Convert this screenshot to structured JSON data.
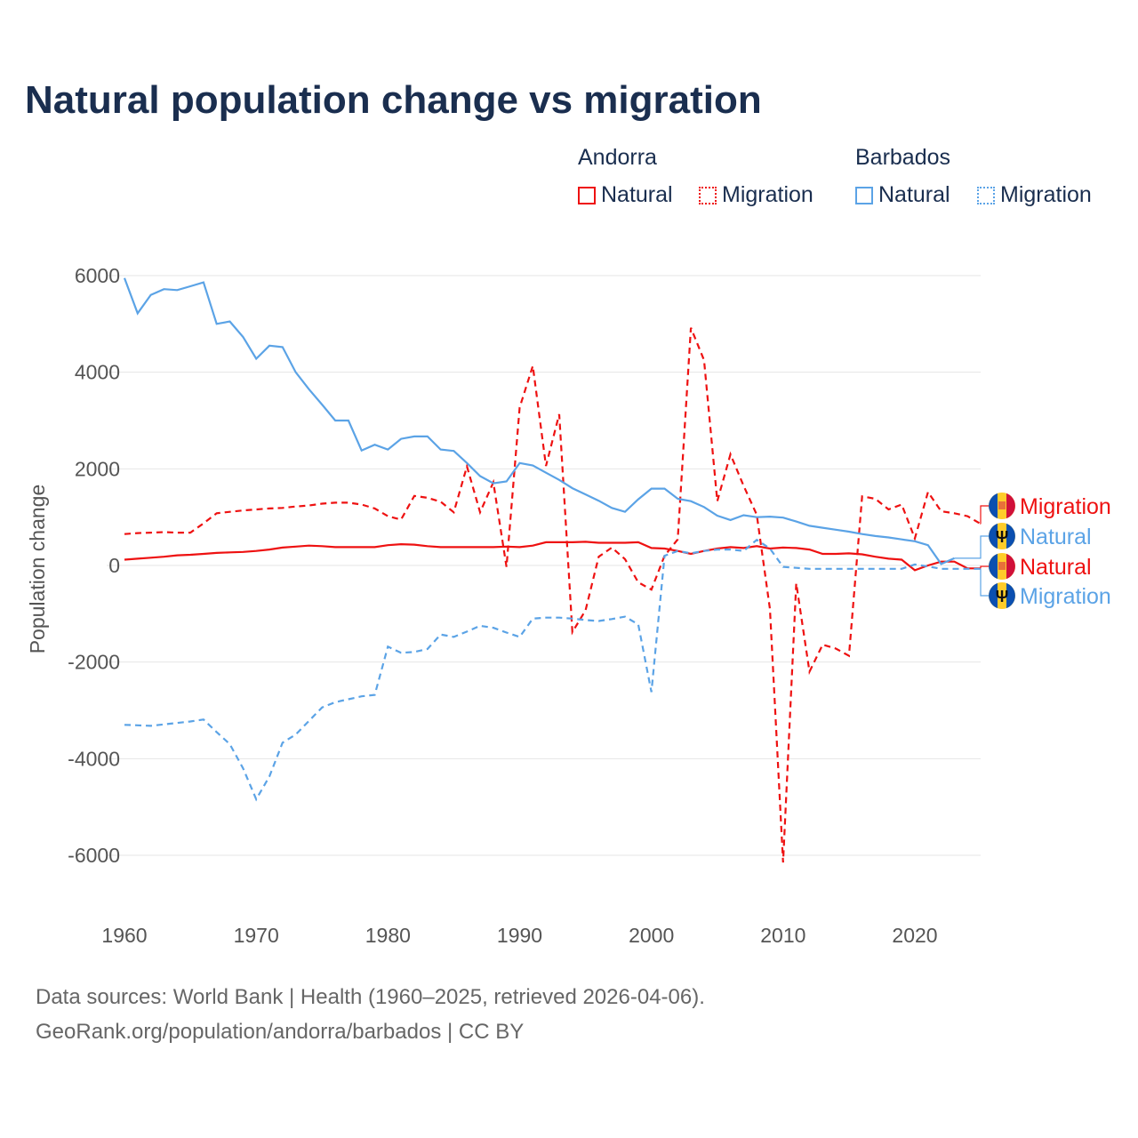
{
  "colors": {
    "andorra": "#ee1111",
    "barbados": "#5ba3e6",
    "title": "#1a2e4f"
  },
  "chart_data": {
    "type": "line",
    "title": "Natural population change vs migration",
    "ylabel": "Population change",
    "xlabel": "",
    "xlim": [
      1960,
      2025
    ],
    "ylim": [
      -6500,
      6300
    ],
    "xticks": [
      1960,
      1970,
      1980,
      1990,
      2000,
      2010,
      2020
    ],
    "yticks": [
      6000,
      4000,
      2000,
      0,
      -2000,
      -4000,
      -6000
    ],
    "grid": true,
    "legend": {
      "placement": "top-right",
      "groups": [
        {
          "name": "Andorra",
          "items": [
            "Natural",
            "Migration"
          ]
        },
        {
          "name": "Barbados",
          "items": [
            "Natural",
            "Migration"
          ]
        }
      ]
    },
    "series": [
      {
        "name": "Andorra Natural",
        "country": "Andorra",
        "kind": "Natural",
        "label": "Natural",
        "start": 1960,
        "values": [
          120,
          140,
          160,
          180,
          210,
          220,
          240,
          260,
          270,
          280,
          300,
          330,
          370,
          390,
          410,
          400,
          380,
          380,
          380,
          380,
          420,
          440,
          430,
          400,
          380,
          380,
          380,
          380,
          380,
          390,
          380,
          410,
          480,
          480,
          480,
          490,
          470,
          470,
          470,
          480,
          360,
          350,
          300,
          240,
          300,
          350,
          380,
          360,
          400,
          350,
          370,
          360,
          330,
          240,
          240,
          250,
          230,
          180,
          140,
          120,
          -100,
          0,
          80,
          80,
          -60,
          -60
        ]
      },
      {
        "name": "Andorra Migration",
        "country": "Andorra",
        "kind": "Migration",
        "label": "Migration",
        "start": 1960,
        "values": [
          650,
          670,
          680,
          690,
          680,
          680,
          870,
          1080,
          1110,
          1140,
          1160,
          1180,
          1190,
          1220,
          1240,
          1280,
          1300,
          1300,
          1260,
          1180,
          1020,
          950,
          1440,
          1400,
          1320,
          1100,
          2050,
          1100,
          1720,
          -30,
          3270,
          4130,
          2060,
          3130,
          -1380,
          -930,
          180,
          370,
          130,
          -350,
          -500,
          200,
          540,
          4920,
          4250,
          1330,
          2300,
          1650,
          1050,
          -900,
          -6150,
          -370,
          -2200,
          -1640,
          -1720,
          -1870,
          1430,
          1380,
          1160,
          1260,
          560,
          1520,
          1120,
          1080,
          1020,
          860
        ]
      },
      {
        "name": "Barbados Natural",
        "country": "Barbados",
        "kind": "Natural",
        "label": "Natural",
        "start": 1960,
        "values": [
          5950,
          5220,
          5600,
          5720,
          5700,
          5780,
          5860,
          5000,
          5050,
          4730,
          4280,
          4550,
          4520,
          4000,
          3650,
          3330,
          3000,
          3000,
          2380,
          2500,
          2400,
          2620,
          2670,
          2670,
          2400,
          2370,
          2120,
          1850,
          1700,
          1740,
          2120,
          2070,
          1920,
          1770,
          1600,
          1470,
          1340,
          1190,
          1110,
          1370,
          1590,
          1590,
          1380,
          1330,
          1210,
          1030,
          940,
          1040,
          1000,
          1010,
          990,
          910,
          820,
          780,
          740,
          700,
          650,
          610,
          580,
          540,
          500,
          420,
          30,
          150
        ]
      },
      {
        "name": "Barbados Migration",
        "country": "Barbados",
        "kind": "Migration",
        "label": "Migration",
        "start": 1960,
        "values": [
          -3300,
          -3310,
          -3320,
          -3290,
          -3260,
          -3230,
          -3190,
          -3450,
          -3700,
          -4200,
          -4840,
          -4370,
          -3670,
          -3500,
          -3220,
          -2940,
          -2830,
          -2770,
          -2710,
          -2680,
          -1680,
          -1810,
          -1790,
          -1730,
          -1430,
          -1480,
          -1370,
          -1250,
          -1290,
          -1390,
          -1480,
          -1100,
          -1080,
          -1080,
          -1100,
          -1130,
          -1150,
          -1110,
          -1060,
          -1220,
          -2620,
          200,
          300,
          250,
          300,
          330,
          330,
          300,
          530,
          350,
          -30,
          -50,
          -70,
          -70,
          -70,
          -70,
          -70,
          -70,
          -70,
          -70,
          20,
          -20,
          -70,
          -70,
          -70,
          -70
        ]
      }
    ]
  },
  "footer": {
    "line1": "Data sources: World Bank | Health (1960–2025, retrieved 2026-04-06).",
    "line2": "GeoRank.org/population/andorra/barbados | CC BY"
  }
}
